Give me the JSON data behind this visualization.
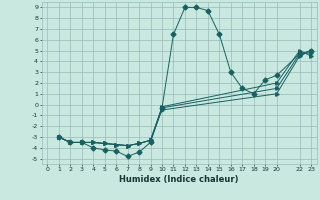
{
  "xlabel": "Humidex (Indice chaleur)",
  "ylabel": "",
  "bg_color": "#c8e8e0",
  "grid_color": "#99bbbb",
  "line_color": "#1a6060",
  "xlim": [
    -0.5,
    23.5
  ],
  "ylim": [
    -5.5,
    9.5
  ],
  "xtick_vals": [
    0,
    1,
    2,
    3,
    4,
    5,
    6,
    7,
    8,
    9,
    10,
    11,
    12,
    13,
    14,
    15,
    16,
    17,
    18,
    19,
    20,
    22,
    23
  ],
  "xtick_labels": [
    "0",
    "1",
    "2",
    "3",
    "4",
    "5",
    "6",
    "7",
    "8",
    "9",
    "10",
    "11",
    "12",
    "13",
    "14",
    "15",
    "16",
    "17",
    "18",
    "19",
    "20",
    "22",
    "23"
  ],
  "ytick_vals": [
    9,
    8,
    7,
    6,
    5,
    4,
    3,
    2,
    1,
    0,
    -1,
    -2,
    -3,
    -4,
    -5
  ],
  "ytick_labels": [
    "9",
    "8",
    "7",
    "6",
    "5",
    "4",
    "3",
    "2",
    "1",
    "0",
    "-1",
    "-2",
    "-3",
    "-4",
    "-5"
  ],
  "line1_x": [
    1,
    2,
    3,
    4,
    5,
    6,
    7,
    8,
    9,
    10,
    11,
    12,
    13,
    14,
    15,
    16,
    17,
    18,
    19,
    20,
    22,
    23
  ],
  "line1_y": [
    -3,
    -3.5,
    -3.5,
    -4.0,
    -4.2,
    -4.3,
    -4.8,
    -4.4,
    -3.5,
    -0.3,
    6.5,
    9.0,
    9.0,
    8.7,
    6.5,
    3.0,
    1.5,
    1.0,
    2.3,
    2.7,
    4.7,
    5.0
  ],
  "line2_x": [
    1,
    2,
    3,
    4,
    5,
    6,
    7,
    8,
    9,
    10,
    20,
    22,
    23
  ],
  "line2_y": [
    -3,
    -3.5,
    -3.5,
    -3.5,
    -3.6,
    -3.7,
    -3.8,
    -3.6,
    -3.3,
    -0.5,
    1.0,
    4.5,
    5.0
  ],
  "line3_x": [
    1,
    2,
    3,
    4,
    5,
    6,
    7,
    8,
    9,
    10,
    20,
    22,
    23
  ],
  "line3_y": [
    -3,
    -3.5,
    -3.5,
    -3.5,
    -3.6,
    -3.7,
    -3.8,
    -3.6,
    -3.3,
    -0.3,
    1.5,
    4.7,
    4.8
  ],
  "line4_x": [
    1,
    2,
    3,
    4,
    5,
    6,
    7,
    8,
    9,
    10,
    20,
    22,
    23
  ],
  "line4_y": [
    -3,
    -3.5,
    -3.5,
    -3.5,
    -3.6,
    -3.7,
    -3.8,
    -3.6,
    -3.3,
    -0.2,
    2.0,
    5.0,
    4.5
  ],
  "marker_size": 2.5,
  "linewidth": 0.7
}
